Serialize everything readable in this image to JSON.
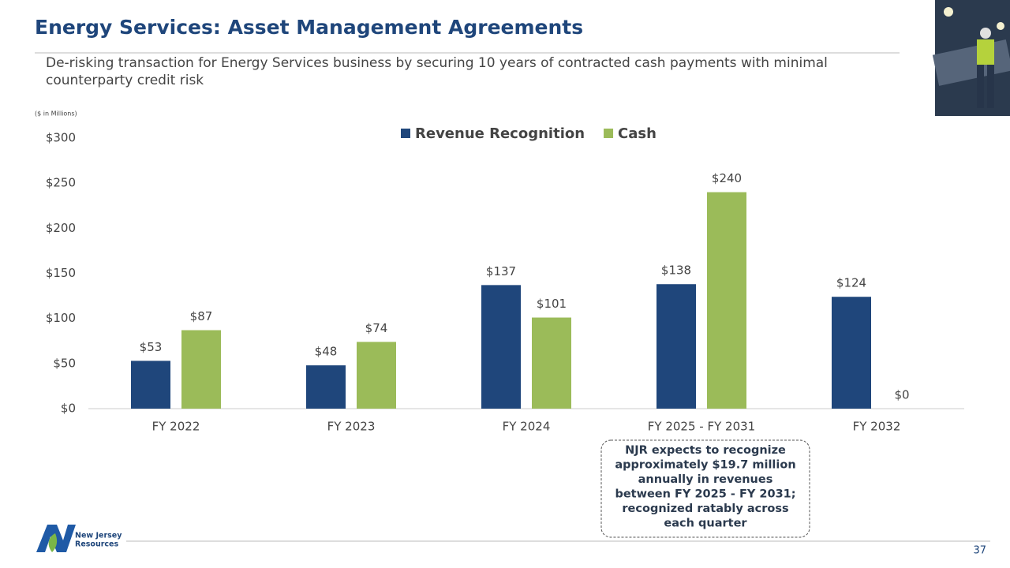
{
  "slide": {
    "title": "Energy Services: Asset Management Agreements",
    "subtitle_lines": [
      "De-risking transaction for Energy Services business by securing 10 years of contracted cash payments with minimal",
      "counterparty credit risk"
    ],
    "logo_lines": [
      "New Jersey",
      "Resources"
    ],
    "page_number": 37
  },
  "chart_data": {
    "type": "bar",
    "ylabel": "($ in Millions)",
    "categories": [
      "FY 2022",
      "FY 2023",
      "FY 2024",
      "FY 2025 - FY 2031",
      "FY 2032"
    ],
    "series": [
      {
        "name": "Revenue Recognition",
        "color": "#1f467b",
        "values": [
          53,
          48,
          137,
          138,
          124
        ],
        "value_labels": [
          "$53",
          "$48",
          "$137",
          "$138",
          "$124"
        ]
      },
      {
        "name": "Cash",
        "color": "#9bbb59",
        "values": [
          87,
          74,
          101,
          240,
          0
        ],
        "value_labels": [
          "$87",
          "$74",
          "$101",
          "$240",
          "$0"
        ]
      }
    ],
    "ylim": [
      0,
      300
    ],
    "yticks": [
      {
        "value": 0,
        "label": "$0"
      },
      {
        "value": 50,
        "label": "$50"
      },
      {
        "value": 100,
        "label": "$100"
      },
      {
        "value": 150,
        "label": "$150"
      },
      {
        "value": 200,
        "label": "$200"
      },
      {
        "value": 250,
        "label": "$250"
      },
      {
        "value": 300,
        "label": "$300"
      }
    ],
    "grid": false,
    "legend": "top",
    "annotation_lines": [
      "NJR expects to recognize",
      "approximately $19.7 million",
      "annually in revenues",
      "between FY 2025 - FY 2031;",
      "recognized ratably across",
      "each quarter"
    ]
  }
}
